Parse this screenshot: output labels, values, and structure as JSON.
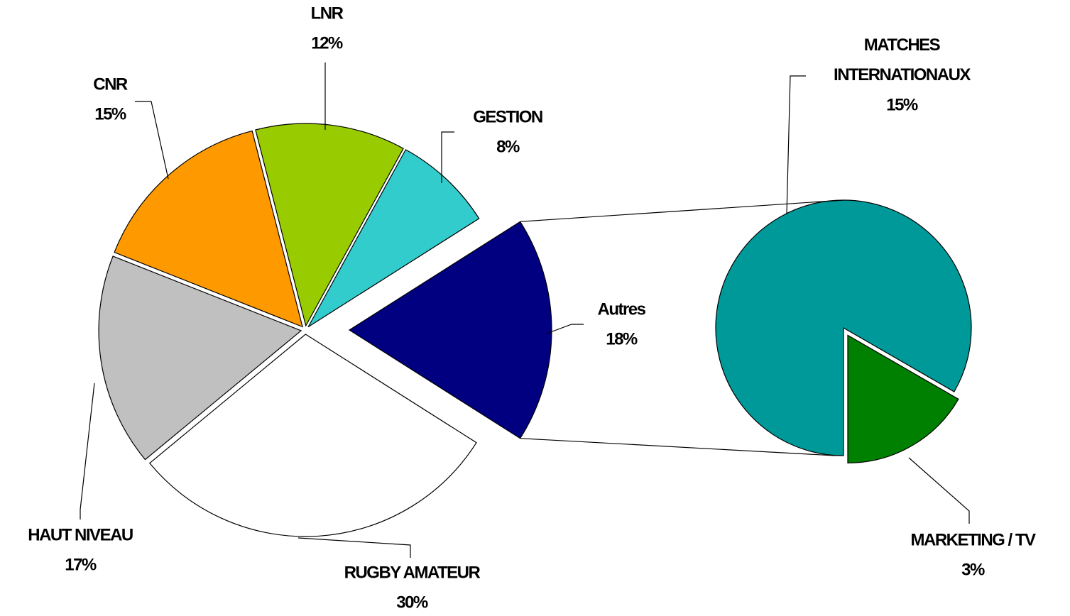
{
  "chart_data": {
    "type": "pie-of-pie",
    "categories": [
      "RUGBY AMATEUR",
      "HAUT NIVEAU",
      "CNR",
      "LNR",
      "GESTION",
      "Autres"
    ],
    "values": [
      30,
      17,
      15,
      12,
      8,
      18
    ],
    "value_labels": [
      "30%",
      "17%",
      "15%",
      "12%",
      "8%",
      "18%"
    ],
    "colors": [
      "#ffffff",
      "#c0c0c0",
      "#ff9900",
      "#99cc00",
      "#33cccc",
      "#000080"
    ],
    "secondary": {
      "categories": [
        "MATCHES INTERNATIONAUX",
        "MARKETING / TV"
      ],
      "values": [
        15,
        3
      ],
      "value_labels": [
        "15%",
        "3%"
      ],
      "colors": [
        "#009999",
        "#008000"
      ]
    }
  }
}
